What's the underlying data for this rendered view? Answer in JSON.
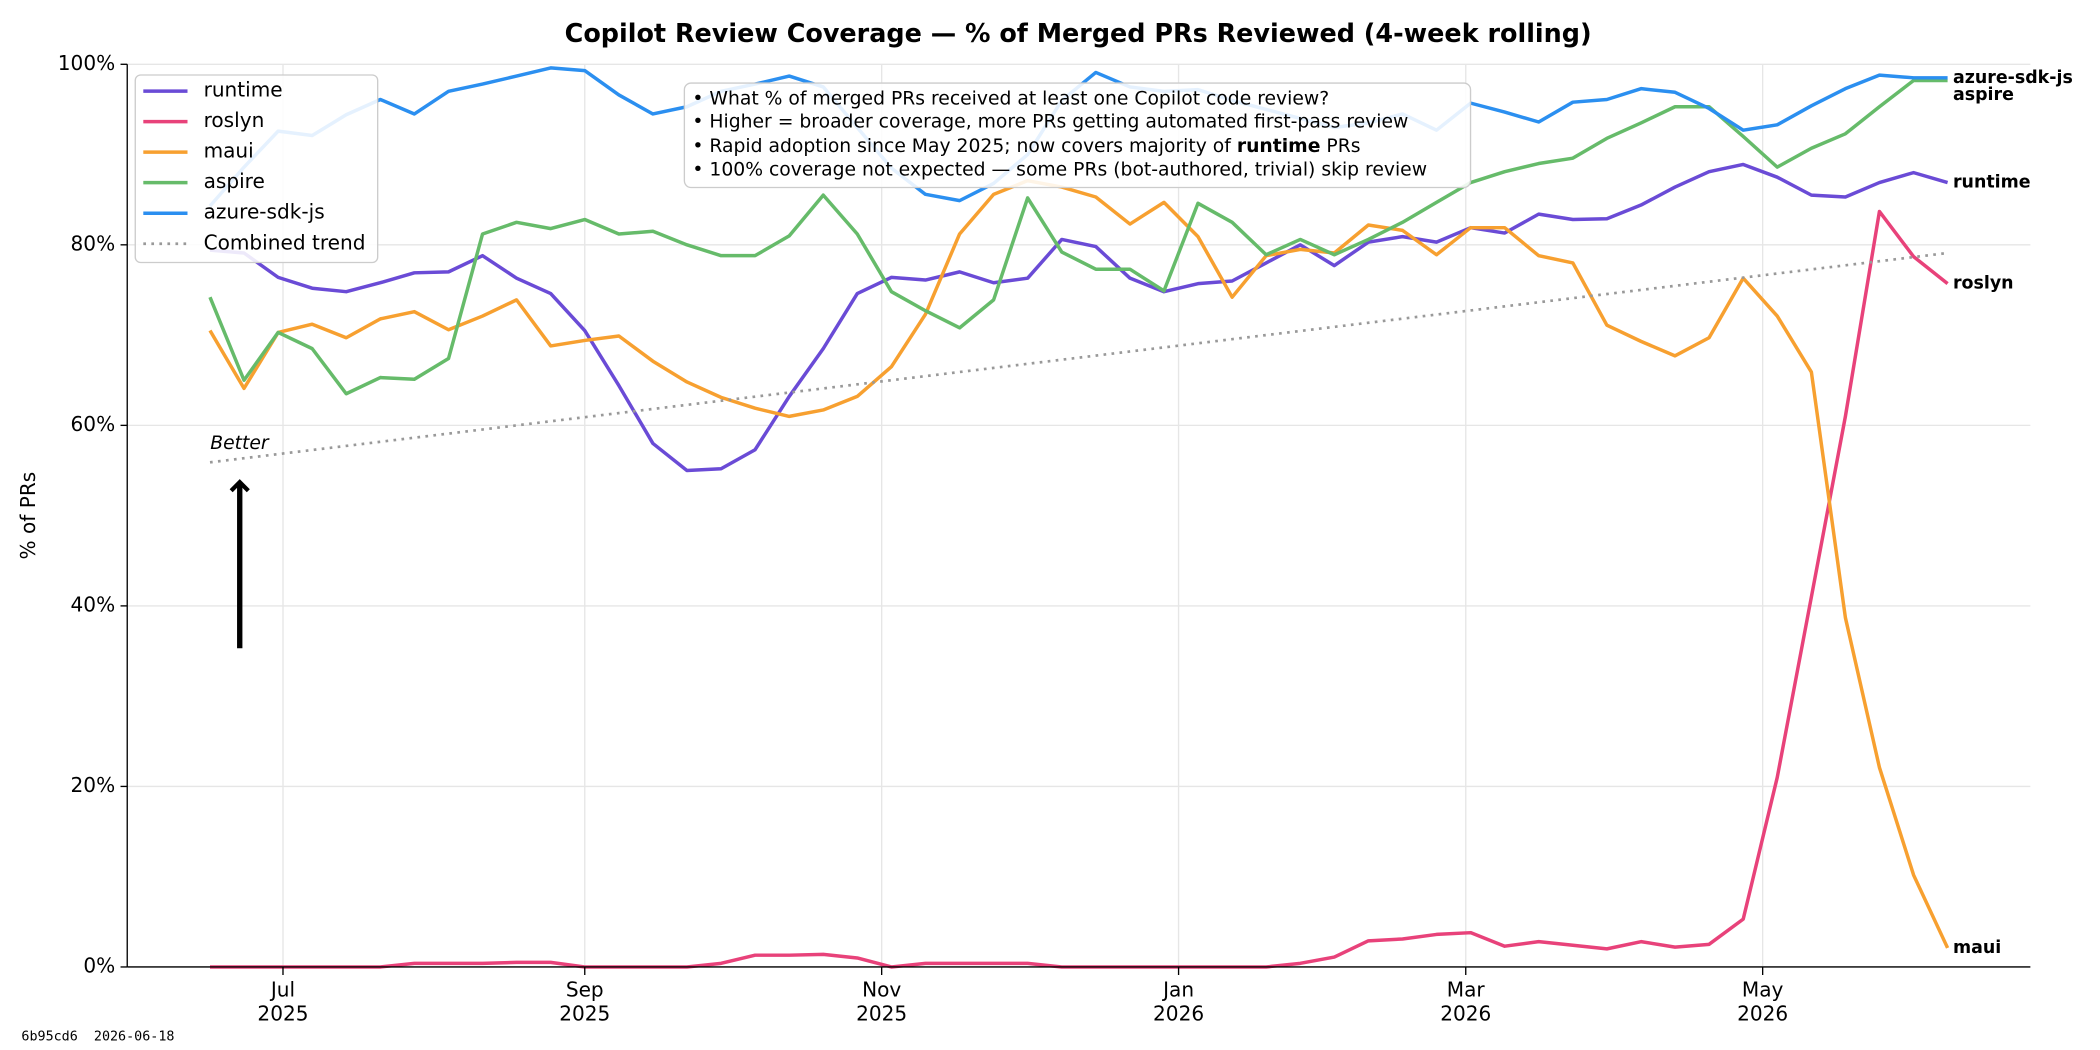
{
  "chart_data": {
    "type": "line",
    "title": "Copilot Review Coverage — % of Merged PRs Reviewed (4-week rolling)",
    "y_label": "% of PRs",
    "x": [
      "2025-06-16",
      "2025-06-23",
      "2025-06-30",
      "2025-07-07",
      "2025-07-14",
      "2025-07-21",
      "2025-07-28",
      "2025-08-04",
      "2025-08-11",
      "2025-08-18",
      "2025-08-25",
      "2025-09-01",
      "2025-09-08",
      "2025-09-15",
      "2025-09-22",
      "2025-09-29",
      "2025-10-06",
      "2025-10-13",
      "2025-10-20",
      "2025-10-27",
      "2025-11-03",
      "2025-11-10",
      "2025-11-17",
      "2025-11-24",
      "2025-12-01",
      "2025-12-08",
      "2025-12-15",
      "2025-12-22",
      "2025-12-29",
      "2026-01-05",
      "2026-01-12",
      "2026-01-19",
      "2026-01-26",
      "2026-02-02",
      "2026-02-09",
      "2026-02-16",
      "2026-02-23",
      "2026-03-02",
      "2026-03-09",
      "2026-03-16",
      "2026-03-23",
      "2026-03-30",
      "2026-04-06",
      "2026-04-13",
      "2026-04-20",
      "2026-04-27",
      "2026-05-04",
      "2026-05-11",
      "2026-05-18",
      "2026-05-25",
      "2026-06-01",
      "2026-06-08"
    ],
    "series": [
      {
        "name": "runtime",
        "color": "#6a4bd6",
        "values": [
          79.4,
          79.1,
          76.4,
          75.2,
          74.8,
          75.8,
          76.9,
          77.0,
          78.8,
          76.3,
          74.6,
          70.5,
          64.4,
          58.0,
          55.0,
          55.2,
          57.3,
          63.2,
          68.5,
          74.6,
          76.4,
          76.1,
          77.0,
          75.8,
          76.3,
          80.6,
          79.8,
          76.3,
          74.8,
          75.7,
          76.0,
          78.0,
          80.0,
          77.7,
          80.3,
          80.9,
          80.3,
          81.9,
          81.3,
          83.4,
          82.8,
          82.9,
          84.4,
          86.4,
          88.1,
          88.9,
          87.5,
          85.5,
          85.3,
          86.9,
          88.0,
          86.9
        ]
      },
      {
        "name": "roslyn",
        "color": "#e8427a",
        "values": [
          0,
          0,
          0,
          0,
          0,
          0,
          0.4,
          0.4,
          0.4,
          0.5,
          0.5,
          0,
          0,
          0,
          0,
          0.4,
          1.3,
          1.3,
          1.4,
          1.0,
          0,
          0.4,
          0.4,
          0.4,
          0.4,
          0,
          0,
          0,
          0,
          0,
          0,
          0,
          0.4,
          1.1,
          2.9,
          3.1,
          3.6,
          3.8,
          2.3,
          2.8,
          2.4,
          2.0,
          2.8,
          2.2,
          2.5,
          5.3,
          21,
          41,
          61,
          83.7,
          78.7,
          75.7
        ]
      },
      {
        "name": "maui",
        "color": "#f7a030",
        "values": [
          70.5,
          64.1,
          70.3,
          71.2,
          69.7,
          71.8,
          72.6,
          70.6,
          72.1,
          73.9,
          68.8,
          69.4,
          69.9,
          67.1,
          64.8,
          63.1,
          61.9,
          61.0,
          61.7,
          63.2,
          66.5,
          72.3,
          81.2,
          85.6,
          87.1,
          86.4,
          85.3,
          82.3,
          84.7,
          80.9,
          74.2,
          78.8,
          79.5,
          79.1,
          82.2,
          81.6,
          78.9,
          81.9,
          81.9,
          78.8,
          78.0,
          71.1,
          69.3,
          67.7,
          69.7,
          76.3,
          72.1,
          65.9,
          38.7,
          22.1,
          10.2,
          2.1
        ]
      },
      {
        "name": "aspire",
        "color": "#66bb6a",
        "values": [
          74.2,
          65.0,
          70.3,
          68.5,
          63.5,
          65.3,
          65.1,
          67.4,
          81.2,
          82.5,
          81.8,
          82.8,
          81.2,
          81.5,
          80.0,
          78.8,
          78.8,
          81.0,
          85.5,
          81.2,
          74.8,
          72.7,
          70.8,
          73.9,
          85.2,
          79.2,
          77.3,
          77.3,
          74.9,
          84.6,
          82.5,
          78.9,
          80.6,
          78.9,
          80.6,
          82.5,
          84.7,
          86.9,
          88.1,
          89.0,
          89.6,
          91.8,
          93.5,
          95.3,
          95.3,
          92.0,
          88.6,
          90.7,
          92.3,
          95.3,
          98.2,
          98.2
        ]
      },
      {
        "name": "azure-sdk-js",
        "color": "#2b8ff0",
        "values": [
          84.3,
          88.6,
          92.6,
          92.1,
          94.4,
          96.1,
          94.5,
          97.0,
          97.8,
          98.7,
          99.6,
          99.3,
          96.6,
          94.5,
          95.3,
          97.0,
          97.8,
          98.7,
          97.5,
          93.0,
          88.5,
          85.6,
          84.9,
          86.8,
          90.0,
          96.0,
          99.1,
          97.5,
          97.0,
          97.2,
          96.0,
          95.0,
          94.0,
          93.0,
          93.5,
          94.5,
          92.7,
          95.7,
          94.7,
          93.6,
          95.8,
          96.1,
          97.3,
          96.9,
          95.1,
          92.7,
          93.3,
          95.4,
          97.3,
          98.8,
          98.5,
          98.5
        ]
      },
      {
        "name": "Combined trend",
        "color": "#999999",
        "linestyle": "dotted",
        "x": [
          "2025-06-16",
          "2026-06-08"
        ],
        "values": [
          55.9,
          79.1
        ]
      }
    ],
    "xlim": [
      "2025-05-30",
      "2026-06-25"
    ],
    "xticks": [
      {
        "value": "2025-07-01",
        "label": [
          "Jul",
          "2025"
        ]
      },
      {
        "value": "2025-09-01",
        "label": [
          "Sep",
          "2025"
        ]
      },
      {
        "value": "2025-11-01",
        "label": [
          "Nov",
          "2025"
        ]
      },
      {
        "value": "2026-01-01",
        "label": [
          "Jan",
          "2026"
        ]
      },
      {
        "value": "2026-03-01",
        "label": [
          "Mar",
          "2026"
        ]
      },
      {
        "value": "2026-05-01",
        "label": [
          "May",
          "2026"
        ]
      }
    ],
    "ylim": [
      0,
      100
    ],
    "yticks": [
      {
        "value": 0,
        "label": "0%"
      },
      {
        "value": 20,
        "label": "20%"
      },
      {
        "value": 40,
        "label": "40%"
      },
      {
        "value": 60,
        "label": "60%"
      },
      {
        "value": 80,
        "label": "80%"
      },
      {
        "value": 100,
        "label": "100%"
      }
    ],
    "grid": true,
    "legend": "upper left",
    "annotation_box": [
      "• What % of merged PRs received at least one Copilot code review?",
      "• Higher = broader coverage, more PRs getting automated first-pass review",
      [
        "• Rapid adoption since May 2025; now covers majority of ",
        "runtime",
        " PRs"
      ],
      "• 100% coverage not expected — some PRs (bot-authored, trivial) skip review"
    ],
    "arrow_label": "Better",
    "footer": "6b95cd6  2026-06-18"
  }
}
